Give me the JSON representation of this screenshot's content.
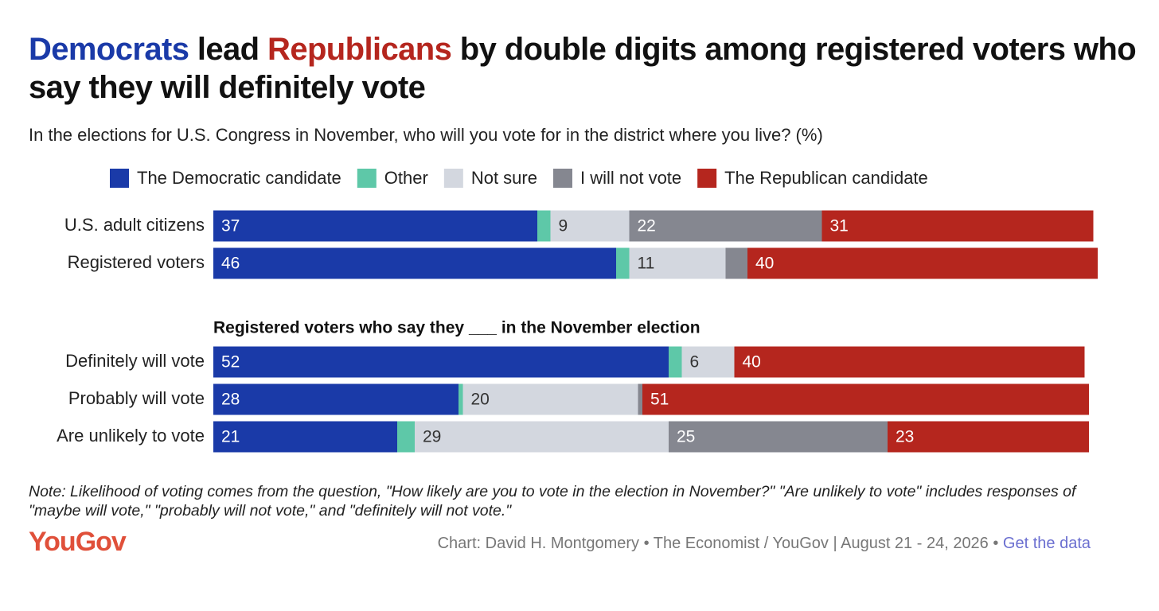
{
  "chart_data": {
    "type": "stacked-bar-horizontal",
    "title": [
      {
        "text": "Democrats",
        "color": "#1a3aa8"
      },
      {
        "text": " lead "
      },
      {
        "text": "Republicans",
        "color": "#b5261e"
      },
      {
        "text": " by double digits among registered voters who say they will definitely vote"
      }
    ],
    "subtitle": "In the elections for U.S. Congress in November, who will you vote for in the district where you live? (%)",
    "categories": [
      "U.S. adult citizens",
      "Registered voters",
      "Definitely will vote",
      "Probably will vote",
      "Are unlikely to vote"
    ],
    "group_heading": "Registered voters who say they ___ in the November election",
    "series": [
      {
        "name": "The Democratic candidate",
        "color": "#1a3aa8",
        "values": [
          37,
          46,
          52,
          28,
          21
        ]
      },
      {
        "name": "Other",
        "color": "#5ec8a8",
        "values": [
          1.5,
          1.5,
          1.5,
          0.5,
          2
        ]
      },
      {
        "name": "Not sure",
        "color": "#d3d7df",
        "values": [
          9,
          11,
          6,
          20,
          29
        ]
      },
      {
        "name": "I will not vote",
        "color": "#858790",
        "values": [
          22,
          2.5,
          0,
          0.5,
          25
        ]
      },
      {
        "name": "The Republican candidate",
        "color": "#b5261e",
        "values": [
          31,
          40,
          40,
          51,
          23
        ]
      }
    ],
    "note": "Note: Likelihood of voting comes from the question, \"How likely are you to vote in the election in November?\" \"Are unlikely to vote\" includes responses of \"maybe will vote,\" \"probably will not vote,\" and \"definitely will not vote.\"",
    "logo": "YouGov",
    "source": "Chart: David H. Montgomery • The Economist / YouGov | August 21 - 24, 2026 • ",
    "link": "Get the data"
  }
}
